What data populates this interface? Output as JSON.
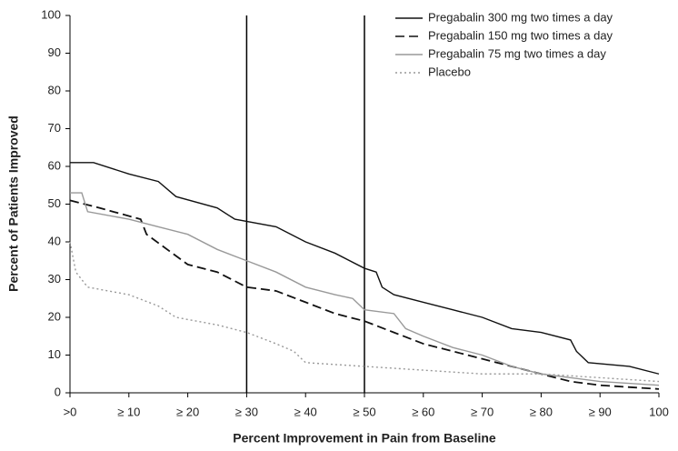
{
  "chart_data": {
    "type": "line",
    "x_label": "Percent Improvement in Pain from Baseline",
    "y_label": "Percent of Patients Improved",
    "xlim": [
      0,
      100
    ],
    "ylim": [
      0,
      100
    ],
    "xticks": [
      {
        "value": 0,
        "label": ">0"
      },
      {
        "value": 10,
        "label": "≥ 10"
      },
      {
        "value": 20,
        "label": "≥ 20"
      },
      {
        "value": 30,
        "label": "≥ 30"
      },
      {
        "value": 40,
        "label": "≥ 40"
      },
      {
        "value": 50,
        "label": "≥ 50"
      },
      {
        "value": 60,
        "label": "≥ 60"
      },
      {
        "value": 70,
        "label": "≥ 70"
      },
      {
        "value": 80,
        "label": "≥ 80"
      },
      {
        "value": 90,
        "label": "≥ 90"
      },
      100
    ],
    "yticks": [
      0,
      10,
      20,
      30,
      40,
      50,
      60,
      70,
      80,
      90,
      100
    ],
    "reference_lines": [
      30,
      50
    ],
    "legend": "top-right",
    "series": [
      {
        "name": "Pregabalin 300 mg two times a day",
        "color": "#111111",
        "style": "solid",
        "x": [
          0,
          4,
          10,
          15,
          18,
          25,
          28,
          35,
          40,
          45,
          50,
          52,
          53,
          55,
          60,
          65,
          70,
          75,
          80,
          85,
          86,
          88,
          95,
          100
        ],
        "values": [
          61,
          61,
          58,
          56,
          52,
          49,
          46,
          44,
          40,
          37,
          33,
          32,
          28,
          26,
          24,
          22,
          20,
          17,
          16,
          14,
          11,
          8,
          7,
          5
        ]
      },
      {
        "name": "Pregabalin 150 mg two times a day",
        "color": "#111111",
        "style": "dashed",
        "x": [
          0,
          5,
          12,
          13,
          20,
          25,
          30,
          35,
          40,
          45,
          50,
          55,
          60,
          65,
          70,
          75,
          80,
          85,
          90,
          100
        ],
        "values": [
          51,
          49,
          46,
          42,
          34,
          32,
          28,
          27,
          24,
          21,
          19,
          16,
          13,
          11,
          9,
          7,
          5,
          3,
          2,
          1
        ]
      },
      {
        "name": "Pregabalin 75 mg two times a day",
        "color": "#999999",
        "style": "solid",
        "x": [
          0,
          2,
          3,
          10,
          15,
          20,
          25,
          30,
          35,
          40,
          45,
          48,
          50,
          55,
          57,
          60,
          65,
          70,
          75,
          80,
          90,
          100
        ],
        "values": [
          53,
          53,
          48,
          46,
          44,
          42,
          38,
          35,
          32,
          28,
          26,
          25,
          22,
          21,
          17,
          15,
          12,
          10,
          7,
          5,
          3,
          2
        ]
      },
      {
        "name": "Placebo",
        "color": "#999999",
        "style": "dotted",
        "x": [
          0,
          1,
          3,
          10,
          15,
          18,
          25,
          30,
          35,
          38,
          40,
          50,
          60,
          70,
          80,
          90,
          100
        ],
        "values": [
          40,
          32,
          28,
          26,
          23,
          20,
          18,
          16,
          13,
          11,
          8,
          7,
          6,
          5,
          5,
          4,
          3
        ]
      }
    ]
  }
}
